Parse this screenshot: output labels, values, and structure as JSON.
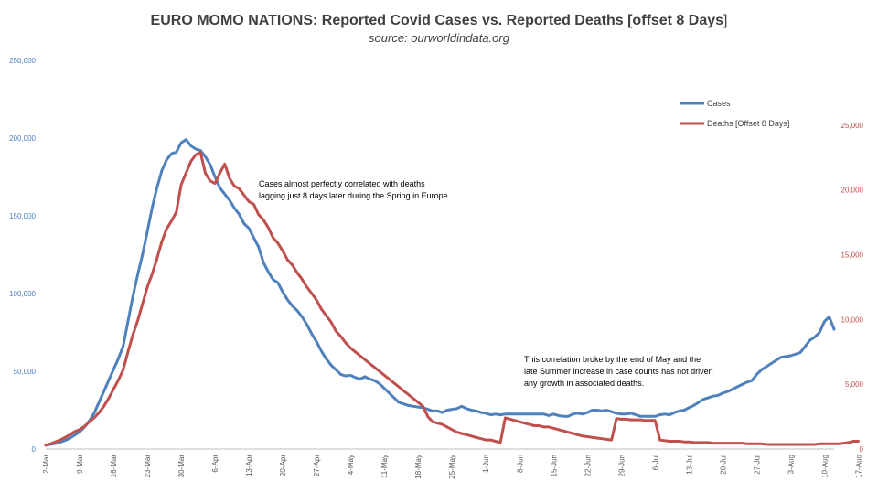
{
  "chart_data": {
    "type": "line",
    "title": "EURO MOMO NATIONS: Reported Covid Cases vs. Reported Deaths [offset 8 Days",
    "title_tail": "]",
    "subtitle": "source: ourworldindata.org",
    "x_ticks": [
      "2-Mar",
      "9-Mar",
      "16-Mar",
      "23-Mar",
      "30-Mar",
      "6-Apr",
      "13-Apr",
      "20-Apr",
      "27-Apr",
      "4-May",
      "11-May",
      "18-May",
      "25-May",
      "1-Jun",
      "8-Jun",
      "15-Jun",
      "22-Jun",
      "29-Jun",
      "6-Jul",
      "13-Jul",
      "20-Jul",
      "27-Jul",
      "3-Aug",
      "10-Aug",
      "17-Aug"
    ],
    "y_left": {
      "min": 0,
      "max": 250000,
      "ticks": [
        "0",
        "50,000",
        "100,000",
        "150,000",
        "200,000",
        "250,000"
      ],
      "color": "#4F81BD"
    },
    "y_right": {
      "min": 0,
      "max": 30000,
      "ticks": [
        "0",
        "5,000",
        "10,000",
        "15,000",
        "20,000",
        "25,000"
      ],
      "color": "#C0504D"
    },
    "legend": [
      {
        "label": "Cases",
        "color": "#4F81BD"
      },
      {
        "label": "Deaths [Offset 8 Days]",
        "color": "#C0504D"
      }
    ],
    "annotations": [
      [
        "Cases almost perfectly correlated with deaths",
        "lagging just 8 days later during the Spring in Europe"
      ],
      [
        "This correlation broke by the end of May and the",
        "late Summer increase in case counts has not driven",
        "any growth in associated deaths."
      ]
    ],
    "series": [
      {
        "name": "Cases",
        "axis": "left",
        "color": "#4F81BD",
        "values": [
          2500,
          3000,
          3600,
          4500,
          5500,
          7000,
          9000,
          11000,
          14000,
          18000,
          23000,
          30000,
          37000,
          44000,
          51000,
          58000,
          66000,
          82000,
          98000,
          112000,
          125000,
          140000,
          155000,
          168000,
          179000,
          186000,
          190000,
          191000,
          197000,
          199000,
          195000,
          193000,
          192000,
          188000,
          183000,
          175000,
          168000,
          164000,
          160000,
          155000,
          151000,
          145000,
          142000,
          136000,
          130000,
          120000,
          114000,
          109000,
          107000,
          101000,
          96000,
          92000,
          89000,
          85000,
          80000,
          74000,
          69000,
          63000,
          58000,
          54000,
          51000,
          48000,
          47000,
          47500,
          46000,
          45000,
          46500,
          45000,
          44000,
          42000,
          39000,
          36000,
          33000,
          30000,
          29000,
          28000,
          27500,
          27000,
          26500,
          25500,
          24500,
          24500,
          23500,
          25000,
          25500,
          26000,
          27500,
          26000,
          25000,
          24500,
          23500,
          23000,
          22000,
          22500,
          22000,
          22500,
          22500,
          22500,
          22500,
          22500,
          22500,
          22500,
          22500,
          22500,
          21500,
          22500,
          21500,
          21000,
          21000,
          22500,
          23000,
          22500,
          23500,
          25000,
          25000,
          24500,
          25000,
          24000,
          23000,
          22500,
          22500,
          23000,
          22000,
          21000,
          21000,
          21000,
          21000,
          22000,
          22500,
          22000,
          23500,
          24500,
          25000,
          26500,
          28000,
          30000,
          32000,
          33000,
          34000,
          34500,
          36000,
          37000,
          38500,
          40000,
          41500,
          43000,
          44000,
          48000,
          51000,
          53000,
          55000,
          57000,
          59000,
          59500,
          60000,
          61000,
          62000,
          66000,
          70000,
          72000,
          75000,
          82000,
          85000,
          77000
        ]
      },
      {
        "name": "Deaths [Offset 8 Days]",
        "axis": "right",
        "color": "#C0504D",
        "values": [
          300,
          400,
          550,
          700,
          900,
          1100,
          1350,
          1500,
          1750,
          2100,
          2400,
          2800,
          3300,
          3900,
          4600,
          5300,
          6100,
          7500,
          8800,
          9900,
          11200,
          12500,
          13500,
          14700,
          16000,
          17000,
          17600,
          18300,
          20400,
          21300,
          22200,
          22700,
          22900,
          21300,
          20700,
          20500,
          21300,
          22000,
          20900,
          20300,
          20100,
          19600,
          19100,
          18900,
          18100,
          17700,
          17100,
          16300,
          15900,
          15300,
          14600,
          14200,
          13600,
          13100,
          12500,
          12000,
          11500,
          10800,
          10300,
          9800,
          9100,
          8700,
          8200,
          7800,
          7500,
          7200,
          6900,
          6600,
          6300,
          6000,
          5700,
          5400,
          5100,
          4800,
          4500,
          4200,
          3900,
          3600,
          3300,
          2500,
          2100,
          2000,
          1900,
          1700,
          1500,
          1300,
          1200,
          1100,
          1000,
          900,
          800,
          700,
          700,
          600,
          500,
          2400,
          2300,
          2200,
          2100,
          2000,
          1900,
          1800,
          1800,
          1700,
          1700,
          1600,
          1500,
          1400,
          1300,
          1200,
          1100,
          1000,
          950,
          900,
          850,
          800,
          750,
          700,
          2350,
          2300,
          2300,
          2250,
          2250,
          2250,
          2200,
          2200,
          2200,
          700,
          650,
          600,
          600,
          600,
          550,
          550,
          500,
          500,
          500,
          500,
          450,
          450,
          450,
          450,
          450,
          450,
          450,
          400,
          400,
          400,
          400,
          350,
          350,
          350,
          350,
          350,
          350,
          350,
          350,
          350,
          350,
          350,
          400,
          400,
          400,
          400,
          400,
          450,
          500,
          600,
          600
        ]
      }
    ]
  }
}
